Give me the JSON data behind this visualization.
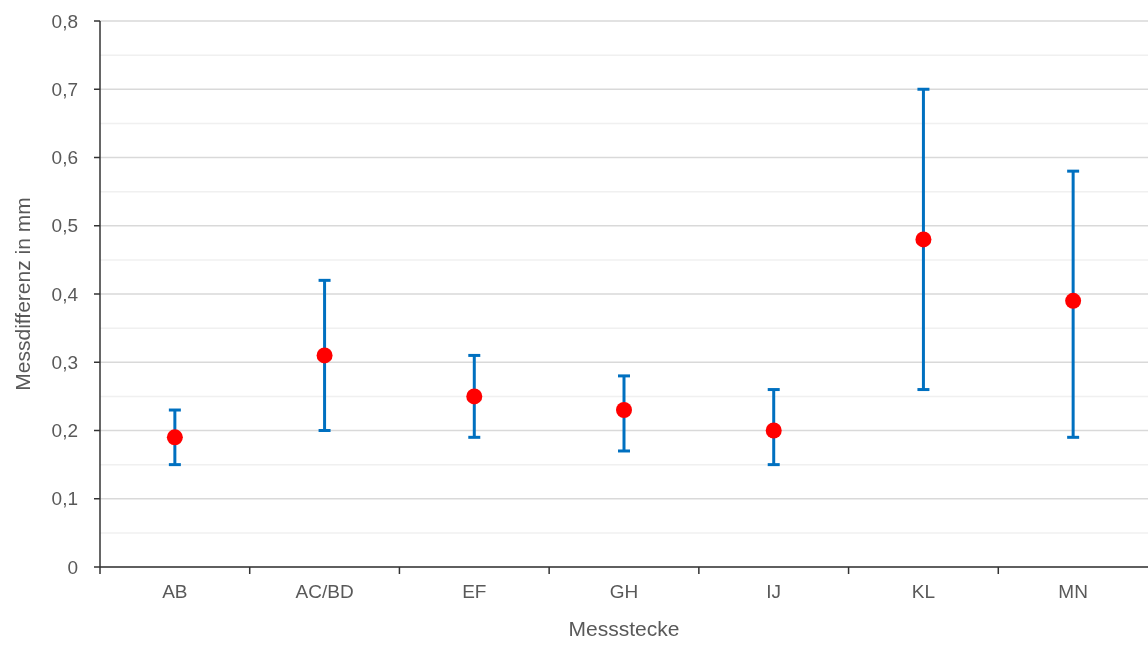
{
  "chart_data": {
    "type": "scatter",
    "xlabel": "Messstecke",
    "ylabel": "Messdifferenz in mm",
    "categories": [
      "AB",
      "AC/BD",
      "EF",
      "GH",
      "IJ",
      "KL",
      "MN"
    ],
    "series": [
      {
        "color": "#ff0000",
        "values": [
          0.19,
          0.31,
          0.25,
          0.23,
          0.2,
          0.48,
          0.39
        ],
        "errors": [
          [
            0.15,
            0.23
          ],
          [
            0.2,
            0.42
          ],
          [
            0.19,
            0.31
          ],
          [
            0.17,
            0.28
          ],
          [
            0.15,
            0.26
          ],
          [
            0.26,
            0.7
          ],
          [
            0.19,
            0.58
          ]
        ]
      }
    ],
    "ylim": [
      0,
      0.8
    ],
    "yticks": [
      0,
      {
        "value": 0.05,
        "label": null
      },
      {
        "value": 0.1,
        "label": "0,1"
      },
      {
        "value": 0.15,
        "label": null
      },
      {
        "value": 0.2,
        "label": "0,2"
      },
      {
        "value": 0.25,
        "label": null
      },
      {
        "value": 0.3,
        "label": "0,3"
      },
      {
        "value": 0.35,
        "label": null
      },
      {
        "value": 0.4,
        "label": "0,4"
      },
      {
        "value": 0.45,
        "label": null
      },
      {
        "value": 0.5,
        "label": "0,5"
      },
      {
        "value": 0.55,
        "label": null
      },
      {
        "value": 0.6,
        "label": "0,6"
      },
      {
        "value": 0.65,
        "label": null
      },
      {
        "value": 0.7,
        "label": "0,7"
      },
      {
        "value": 0.75,
        "label": null
      },
      {
        "value": 0.8,
        "label": "0,8"
      }
    ],
    "grid": "y",
    "marker": "circle"
  }
}
